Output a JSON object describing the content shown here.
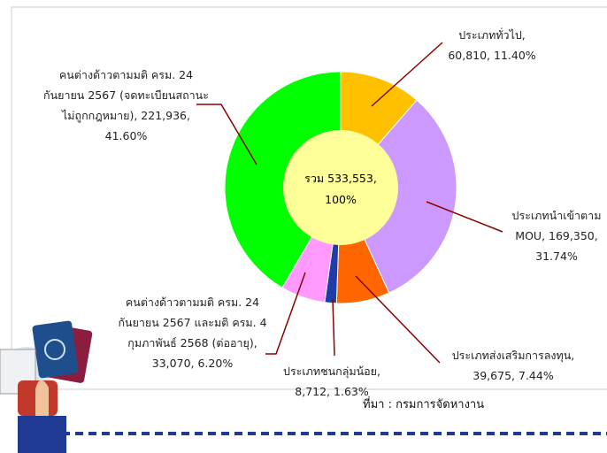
{
  "chart_data": {
    "type": "pie",
    "categories": [
      "ประเภททั่วไป,",
      "ประเภทนำเข้าตาม MOU,",
      "ประเภทส่งเสริมการลงทุน,",
      "ประเภทชนกลุ่มน้อย,",
      "คนต่างด้าวตามมติ ครม. 24 กันยายน 2567 และมติ ครม. 4 กุมภาพันธ์ 2568 (ต่ออายุ),",
      "คนต่างด้าวตามมติ ครม. 24 กันยายน 2567 (จดทะเบียนสถานะไม่ถูกกฎหมาย),"
    ],
    "values": [
      60810,
      169350,
      39675,
      8712,
      33070,
      221936
    ],
    "value_labels": [
      "60,810,",
      "169,350,",
      "39,675,",
      "8,712,",
      "33,070,",
      "221,936,"
    ],
    "percentages": [
      11.4,
      31.74,
      7.44,
      1.63,
      6.2,
      41.6
    ],
    "percentage_labels": [
      "11.40%",
      "31.74%",
      "7.44%",
      "1.63%",
      "6.20%",
      "41.60%"
    ],
    "colors": [
      "#ffc000",
      "#cc99ff",
      "#ff6600",
      "#1f3ca8",
      "#ff99ff",
      "#00ff00"
    ],
    "total": {
      "prefix": "รวม",
      "value": 533553,
      "label": "533,553,",
      "percent": 100,
      "percent_label": "100%"
    },
    "source": "ที่มา : กรมการจัดหางาน"
  }
}
